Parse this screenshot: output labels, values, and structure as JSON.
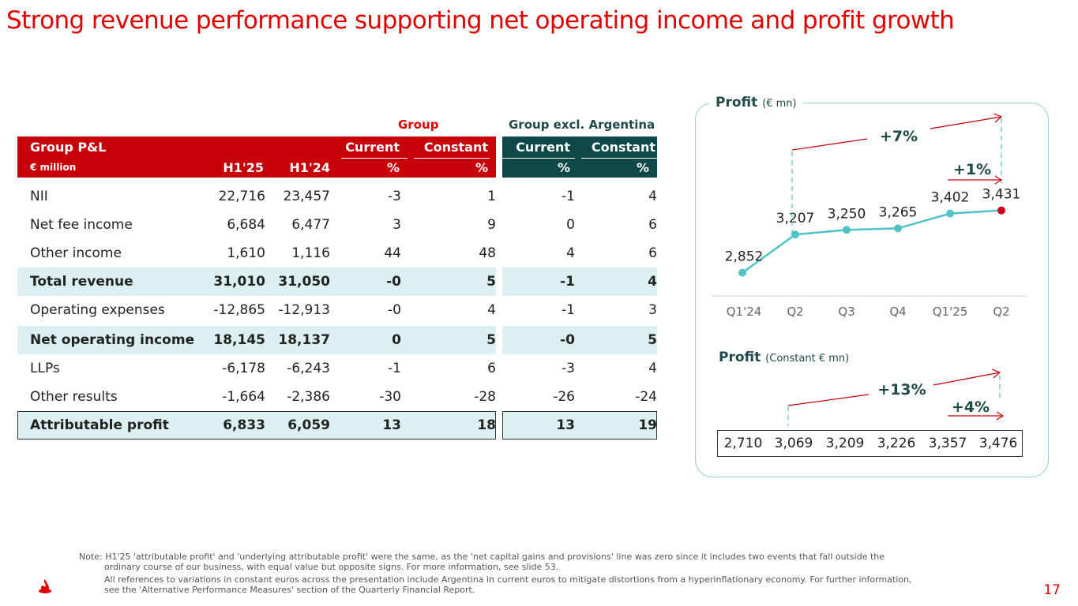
{
  "title": "Strong revenue performance supporting net operating income and profit growth",
  "table": {
    "group_label": "Group",
    "group_excl_label": "Group excl. Argentina",
    "header": {
      "pl_label": "Group P&L",
      "unit": "€ million",
      "h1_25": "H1'25",
      "h1_24": "H1'24",
      "current": "Current",
      "constant": "Constant",
      "pct": "%"
    },
    "rows": [
      {
        "label": "NII",
        "h125": "22,716",
        "h124": "23,457",
        "cur": "-3",
        "con": "1",
        "xcur": "-1",
        "xcon": "4"
      },
      {
        "label": "Net fee income",
        "h125": "6,684",
        "h124": "6,477",
        "cur": "3",
        "con": "9",
        "xcur": "0",
        "xcon": "6"
      },
      {
        "label": "Other income",
        "h125": "1,610",
        "h124": "1,116",
        "cur": "44",
        "con": "48",
        "xcur": "4",
        "xcon": "6"
      },
      {
        "label": "Total revenue",
        "h125": "31,010",
        "h124": "31,050",
        "cur": "-0",
        "con": "5",
        "xcur": "-1",
        "xcon": "4"
      },
      {
        "label": "Operating expenses",
        "h125": "-12,865",
        "h124": "-12,913",
        "cur": "-0",
        "con": "4",
        "xcur": "-1",
        "xcon": "3"
      },
      {
        "label": "Net operating income",
        "h125": "18,145",
        "h124": "18,137",
        "cur": "0",
        "con": "5",
        "xcur": "-0",
        "xcon": "5"
      },
      {
        "label": "LLPs",
        "h125": "-6,178",
        "h124": "-6,243",
        "cur": "-1",
        "con": "6",
        "xcur": "-3",
        "xcon": "4"
      },
      {
        "label": "Other results",
        "h125": "-1,664",
        "h124": "-2,386",
        "cur": "-30",
        "con": "-28",
        "xcur": "-26",
        "xcon": "-24"
      },
      {
        "label": "Attributable profit",
        "h125": "6,833",
        "h124": "6,059",
        "cur": "13",
        "con": "18",
        "xcur": "13",
        "xcon": "19"
      }
    ]
  },
  "chart_data": [
    {
      "type": "line",
      "title": "Profit",
      "unit_label": "(€ mn)",
      "categories": [
        "Q1'24",
        "Q2",
        "Q3",
        "Q4",
        "Q1'25",
        "Q2"
      ],
      "values": [
        2852,
        3207,
        3250,
        3265,
        3402,
        3431
      ],
      "value_labels": [
        "2,852",
        "3,207",
        "3,250",
        "3,265",
        "3,402",
        "3,431"
      ],
      "ylim": [
        2700,
        3600
      ],
      "annotations": [
        {
          "label": "+7%",
          "from_index": 1,
          "to_index": 5
        },
        {
          "label": "+1%",
          "from_index": 4,
          "to_index": 5
        }
      ],
      "line_color": "#4fc3c8",
      "highlight_color": "#d0021b"
    },
    {
      "type": "table",
      "title": "Profit",
      "unit_label": "(Constant € mn)",
      "values": [
        2710,
        3069,
        3209,
        3226,
        3357,
        3476
      ],
      "value_labels": [
        "2,710",
        "3,069",
        "3,209",
        "3,226",
        "3,357",
        "3,476"
      ],
      "annotations": [
        {
          "label": "+13%",
          "from_index": 1,
          "to_index": 5
        },
        {
          "label": "+4%",
          "from_index": 4,
          "to_index": 5
        }
      ]
    }
  ],
  "note": {
    "line1": "Note: H1'25 'attributable profit' and 'underlying attributable profit' were the same, as the 'net capital gains and provisions' line was zero since it includes two events that fall outside the ordinary course of our business, with equal value but opposite signs. For more information, see slide 53.",
    "line2": "All references to variations in constant euros across the presentation include Argentina in current euros to mitigate distortions from a hyperinflationary economy. For further information, see the 'Alternative Performance Measures' section of the Quarterly Financial Report."
  },
  "page_number": "17",
  "colors": {
    "red": "#e00000",
    "teal_dark": "#0f4848",
    "teal_light": "#dcf0f2",
    "line": "#4fc3c8"
  }
}
